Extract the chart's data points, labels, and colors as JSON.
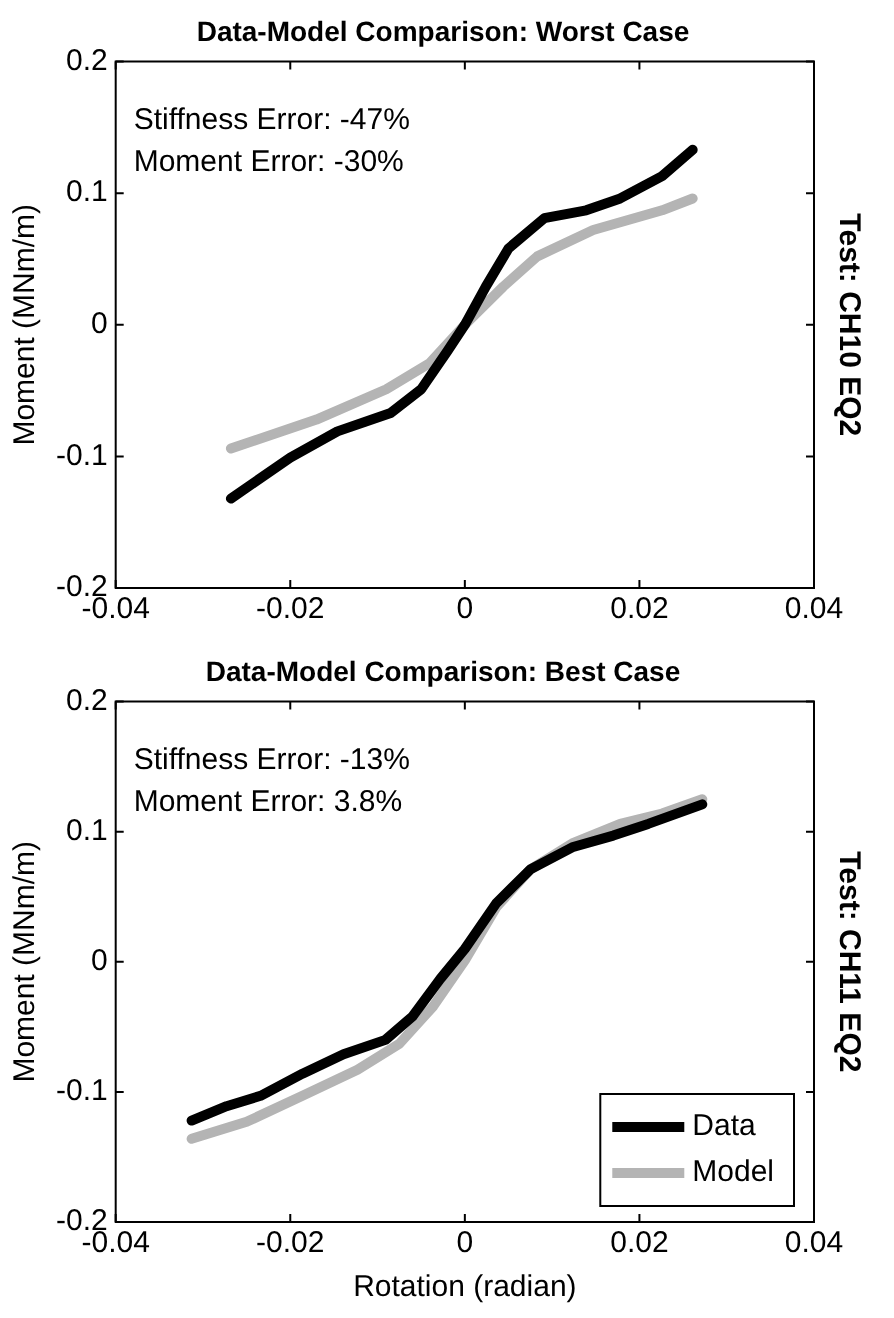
{
  "chart_data": [
    {
      "type": "line",
      "title": "Data-Model Comparison: Worst Case",
      "ylabel": "Moment (MNm/m)",
      "y2label": "Test: CH10 EQ2",
      "annotations": [
        "Stiffness Error: -47%",
        "Moment Error: -30%"
      ],
      "xlim": [
        -0.04,
        0.04
      ],
      "xticks": [
        -0.04,
        -0.02,
        0,
        0.02,
        0.04
      ],
      "ylim": [
        -0.2,
        0.2
      ],
      "yticks": [
        -0.2,
        -0.1,
        0,
        0.1,
        0.2
      ],
      "grid": false,
      "legend": false,
      "series": [
        {
          "color": "#000000",
          "x": [
            -0.0268,
            -0.02,
            -0.0146,
            -0.0085,
            -0.005,
            -0.002,
            0,
            0.0024,
            0.005,
            0.0091,
            0.0139,
            0.0178,
            0.0226,
            0.0261
          ],
          "values": [
            -0.132,
            -0.101,
            -0.081,
            -0.067,
            -0.049,
            -0.02,
            0,
            0.029,
            0.058,
            0.081,
            0.087,
            0.096,
            0.113,
            0.133
          ]
        },
        {
          "color": "#b4b4b4",
          "x": [
            -0.0268,
            -0.017,
            -0.009,
            -0.004,
            0,
            0.0044,
            0.0083,
            0.0147,
            0.0226,
            0.0261
          ],
          "values": [
            -0.094,
            -0.072,
            -0.049,
            -0.029,
            0,
            0.029,
            0.052,
            0.072,
            0.087,
            0.096
          ]
        }
      ]
    },
    {
      "type": "line",
      "title": "Data-Model Comparison: Best Case",
      "xlabel": "Rotation (radian)",
      "ylabel": "Moment (MNm/m)",
      "y2label": "Test: CH11 EQ2",
      "annotations": [
        "Stiffness Error: -13%",
        "Moment Error: 3.8%"
      ],
      "xlim": [
        -0.04,
        0.04
      ],
      "xticks": [
        -0.04,
        -0.02,
        0,
        0.02,
        0.04
      ],
      "ylim": [
        -0.2,
        0.2
      ],
      "yticks": [
        -0.2,
        -0.1,
        0,
        0.1,
        0.2
      ],
      "grid": false,
      "legend": "bottom right",
      "series": [
        {
          "name": "Data",
          "color": "#000000",
          "x": [
            -0.0313,
            -0.0273,
            -0.0234,
            -0.0186,
            -0.0139,
            -0.0091,
            -0.006,
            -0.0028,
            0,
            0.0036,
            0.0075,
            0.0123,
            0.017,
            0.021,
            0.0272
          ],
          "values": [
            -0.122,
            -0.111,
            -0.103,
            -0.086,
            -0.071,
            -0.06,
            -0.042,
            -0.013,
            0.01,
            0.045,
            0.071,
            0.088,
            0.097,
            0.106,
            0.121
          ]
        },
        {
          "name": "Model",
          "color": "#b4b4b4",
          "x": [
            -0.0313,
            -0.025,
            -0.0186,
            -0.0123,
            -0.0075,
            -0.0036,
            0,
            0.0036,
            0.0075,
            0.0123,
            0.0178,
            0.0226,
            0.0272
          ],
          "values": [
            -0.136,
            -0.123,
            -0.103,
            -0.083,
            -0.063,
            -0.034,
            0.001,
            0.042,
            0.071,
            0.091,
            0.106,
            0.114,
            0.125
          ]
        }
      ]
    }
  ]
}
